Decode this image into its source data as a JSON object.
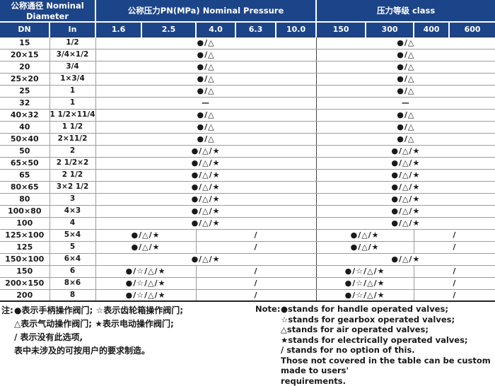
{
  "colors": {
    "header_bg": "#1c4489",
    "header_text": "#ffffff",
    "grid_line": "#9c9c9c",
    "strong_line": "#333333"
  },
  "table": {
    "group_headers": [
      "公称通径 Nominal Diameter",
      "公称压力PN(MPa)  Nominal Pressure",
      "压力等级 class"
    ],
    "columns": [
      "DN",
      "In",
      "1.6",
      "2.5",
      "4.0",
      "6.3",
      "10.0",
      "150",
      "300",
      "400",
      "600"
    ],
    "rows": [
      {
        "dn": "15",
        "in": "1/2",
        "pn": [
          {
            "span": 5,
            "t": "●/△"
          }
        ],
        "cls": [
          {
            "span": 4,
            "t": "●/△"
          }
        ]
      },
      {
        "dn": "20×15",
        "in": "3/4×1/2",
        "pn": [
          {
            "span": 5,
            "t": "●/△"
          }
        ],
        "cls": [
          {
            "span": 4,
            "t": "●/△"
          }
        ]
      },
      {
        "dn": "20",
        "in": "3/4",
        "pn": [
          {
            "span": 5,
            "t": "●/△"
          }
        ],
        "cls": [
          {
            "span": 4,
            "t": "●/△"
          }
        ]
      },
      {
        "dn": "25×20",
        "in": "1×3/4",
        "pn": [
          {
            "span": 5,
            "t": "●/△"
          }
        ],
        "cls": [
          {
            "span": 4,
            "t": "●/△"
          }
        ]
      },
      {
        "dn": "25",
        "in": "1",
        "pn": [
          {
            "span": 5,
            "t": "●/△"
          }
        ],
        "cls": [
          {
            "span": 4,
            "t": "●/△"
          }
        ]
      },
      {
        "dn": "32",
        "in": "1",
        "pn": [
          {
            "span": 5,
            "t": "—"
          }
        ],
        "cls": [
          {
            "span": 4,
            "t": "—"
          }
        ]
      },
      {
        "dn": "40×32",
        "in": "1 1/2×11/4",
        "pn": [
          {
            "span": 5,
            "t": "●/△"
          }
        ],
        "cls": [
          {
            "span": 4,
            "t": "●/△"
          }
        ]
      },
      {
        "dn": "40",
        "in": "1 1/2",
        "pn": [
          {
            "span": 5,
            "t": "●/△"
          }
        ],
        "cls": [
          {
            "span": 4,
            "t": "●/△"
          }
        ]
      },
      {
        "dn": "50×40",
        "in": "2×11/2",
        "pn": [
          {
            "span": 5,
            "t": "●/△"
          }
        ],
        "cls": [
          {
            "span": 4,
            "t": "●/△"
          }
        ]
      },
      {
        "dn": "50",
        "in": "2",
        "pn": [
          {
            "span": 5,
            "t": "●/△/★"
          }
        ],
        "cls": [
          {
            "span": 4,
            "t": "●/△/★"
          }
        ]
      },
      {
        "dn": "65×50",
        "in": "2 1/2×2",
        "pn": [
          {
            "span": 5,
            "t": "●/△/★"
          }
        ],
        "cls": [
          {
            "span": 4,
            "t": "●/△/★"
          }
        ]
      },
      {
        "dn": "65",
        "in": "2 1/2",
        "pn": [
          {
            "span": 5,
            "t": "●/△/★"
          }
        ],
        "cls": [
          {
            "span": 4,
            "t": "●/△/★"
          }
        ]
      },
      {
        "dn": "80×65",
        "in": "3×2 1/2",
        "pn": [
          {
            "span": 5,
            "t": "●/△/★"
          }
        ],
        "cls": [
          {
            "span": 4,
            "t": "●/△/★"
          }
        ]
      },
      {
        "dn": "80",
        "in": "3",
        "pn": [
          {
            "span": 5,
            "t": "●/△/★"
          }
        ],
        "cls": [
          {
            "span": 4,
            "t": "●/△/★"
          }
        ]
      },
      {
        "dn": "100×80",
        "in": "4×3",
        "pn": [
          {
            "span": 5,
            "t": "●/△/★"
          }
        ],
        "cls": [
          {
            "span": 4,
            "t": "●/△/★"
          }
        ]
      },
      {
        "dn": "100",
        "in": "4",
        "pn": [
          {
            "span": 5,
            "t": "●/△/★"
          }
        ],
        "cls": [
          {
            "span": 4,
            "t": "●/△/★"
          }
        ]
      },
      {
        "dn": "125×100",
        "in": "5×4",
        "pn": [
          {
            "span": 2,
            "t": "●/△/★"
          },
          {
            "span": 3,
            "t": "/"
          }
        ],
        "cls": [
          {
            "span": 2,
            "t": "●/△/★"
          },
          {
            "span": 2,
            "t": "/"
          }
        ]
      },
      {
        "dn": "125",
        "in": "5",
        "pn": [
          {
            "span": 2,
            "t": "●/△/★"
          },
          {
            "span": 3,
            "t": "/"
          }
        ],
        "cls": [
          {
            "span": 2,
            "t": "●/△/★"
          },
          {
            "span": 2,
            "t": "/"
          }
        ]
      },
      {
        "dn": "150×100",
        "in": "6×4",
        "pn": [
          {
            "span": 5,
            "t": "●/△/★"
          }
        ],
        "cls": [
          {
            "span": 4,
            "t": "●/△/★"
          }
        ]
      },
      {
        "dn": "150",
        "in": "6",
        "pn": [
          {
            "span": 2,
            "t": "●/☆/△/★"
          },
          {
            "span": 3,
            "t": "/"
          }
        ],
        "cls": [
          {
            "span": 2,
            "t": "●/☆/△/★"
          },
          {
            "span": 2,
            "t": "/"
          }
        ]
      },
      {
        "dn": "200×150",
        "in": "8×6",
        "pn": [
          {
            "span": 2,
            "t": "●/☆/△/★"
          },
          {
            "span": 3,
            "t": "/"
          }
        ],
        "cls": [
          {
            "span": 2,
            "t": "●/☆/△/★"
          },
          {
            "span": 2,
            "t": "/"
          }
        ]
      },
      {
        "dn": "200",
        "in": "8",
        "pn": [
          {
            "span": 2,
            "t": "●/☆/△/★"
          },
          {
            "span": 3,
            "t": "/"
          }
        ],
        "cls": [
          {
            "span": 2,
            "t": "●/☆/△/★"
          },
          {
            "span": 2,
            "t": "/"
          }
        ]
      }
    ]
  },
  "notes": {
    "cn": {
      "label": "注:",
      "lines": [
        "●表示手柄操作阀门;  ☆表示齿轮箱操作阀门;",
        "△表示气动操作阀门;  ★表示电动操作阀门;",
        "/ 表示没有此选项,",
        "表中未涉及的可按用户的要求制造。"
      ]
    },
    "en": {
      "label": "Note:",
      "lines": [
        "●stands for handle operated valves;",
        "☆stands for gearbox operated valves;",
        "△stands for air operated valves;",
        "★stands for electrically operated valves;",
        "/ stands for no option of this.",
        "Those not covered in the table can be custom made to users'",
        "requirements."
      ]
    }
  }
}
